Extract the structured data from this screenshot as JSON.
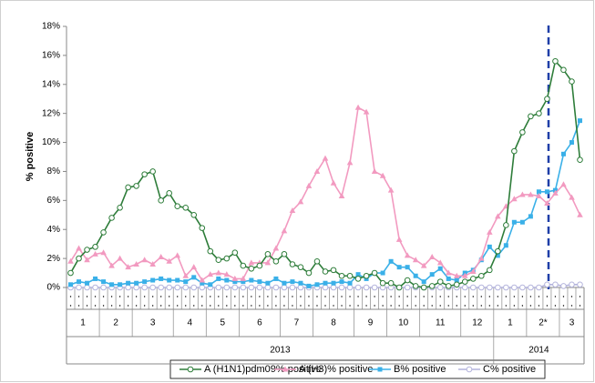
{
  "chart_data": {
    "type": "line",
    "y_label": "% positive",
    "ylim": [
      0,
      18
    ],
    "yticks": [
      {
        "value": 0,
        "label": "0%"
      },
      {
        "value": 2,
        "label": "2%"
      },
      {
        "value": 4,
        "label": "4%"
      },
      {
        "value": 6,
        "label": "6%"
      },
      {
        "value": 8,
        "label": "8%"
      },
      {
        "value": 10,
        "label": "10%"
      },
      {
        "value": 12,
        "label": "12%"
      },
      {
        "value": 14,
        "label": "14%"
      },
      {
        "value": 16,
        "label": "16%"
      },
      {
        "value": 18,
        "label": "18%"
      }
    ],
    "categories": [
      "1",
      "1",
      "1",
      "1",
      "2",
      "2",
      "2",
      "2",
      "3",
      "3",
      "3",
      "3",
      "3",
      "4",
      "4",
      "4",
      "4",
      "5",
      "5",
      "5",
      "5",
      "6",
      "6",
      "6",
      "6",
      "6",
      "7",
      "7",
      "7",
      "7",
      "8",
      "8",
      "8",
      "8",
      "8",
      "9",
      "9",
      "9",
      "9",
      "10",
      "10",
      "10",
      "10",
      "11",
      "11",
      "11",
      "11",
      "11",
      "12",
      "12",
      "12",
      "12",
      "1",
      "1",
      "1",
      "1",
      "2*",
      "2*",
      "2*",
      "2*",
      "3",
      "3",
      "3"
    ],
    "x_groups": [
      "2013",
      "2013",
      "2013",
      "2013",
      "2013",
      "2013",
      "2013",
      "2013",
      "2013",
      "2013",
      "2013",
      "2013",
      "2013",
      "2013",
      "2013",
      "2013",
      "2013",
      "2013",
      "2013",
      "2013",
      "2013",
      "2013",
      "2013",
      "2013",
      "2013",
      "2013",
      "2013",
      "2013",
      "2013",
      "2013",
      "2013",
      "2013",
      "2013",
      "2013",
      "2013",
      "2013",
      "2013",
      "2013",
      "2013",
      "2013",
      "2013",
      "2013",
      "2013",
      "2013",
      "2013",
      "2013",
      "2013",
      "2013",
      "2013",
      "2013",
      "2013",
      "2013",
      "2014",
      "2014",
      "2014",
      "2014",
      "2014",
      "2014",
      "2014",
      "2014",
      "2014",
      "2014",
      "2014"
    ],
    "series": [
      {
        "name": "A (H1N1)pdm09% positive",
        "color": "#2e7d3a",
        "marker": "circle-open",
        "values": [
          1.0,
          2.0,
          2.6,
          2.8,
          3.8,
          4.8,
          5.5,
          6.9,
          7.0,
          7.8,
          8.0,
          6.0,
          6.5,
          5.6,
          5.5,
          5.0,
          4.1,
          2.5,
          1.9,
          2.0,
          2.4,
          1.5,
          1.3,
          1.5,
          2.3,
          1.8,
          2.3,
          1.6,
          1.4,
          1.0,
          1.8,
          1.1,
          1.2,
          0.8,
          0.8,
          0.6,
          0.8,
          1.0,
          0.3,
          0.3,
          0.0,
          0.5,
          0.1,
          0.0,
          0.1,
          0.4,
          0.1,
          0.2,
          0.4,
          0.6,
          0.8,
          1.2,
          2.5,
          4.3,
          9.4,
          10.7,
          11.8,
          12.0,
          13.0,
          15.6,
          15.0,
          14.2,
          8.8
        ]
      },
      {
        "name": "A (H3)% positive",
        "color": "#f29ac0",
        "marker": "triangle",
        "values": [
          1.8,
          2.7,
          1.9,
          2.3,
          2.4,
          1.5,
          2.0,
          1.4,
          1.6,
          1.9,
          1.6,
          2.1,
          1.8,
          2.2,
          0.8,
          1.4,
          0.5,
          0.9,
          1.0,
          0.9,
          0.6,
          0.6,
          1.7,
          1.7,
          1.7,
          2.7,
          3.9,
          5.3,
          5.9,
          7.0,
          8.0,
          8.9,
          7.2,
          6.3,
          8.6,
          12.4,
          12.1,
          8.0,
          7.7,
          6.7,
          3.3,
          2.2,
          1.9,
          1.5,
          2.1,
          1.7,
          1.0,
          0.8,
          0.8,
          1.1,
          2.0,
          3.8,
          4.9,
          5.6,
          6.1,
          6.4,
          6.4,
          6.3,
          5.8,
          6.5,
          7.1,
          6.2,
          5.0
        ]
      },
      {
        "name": "B% positive",
        "color": "#3ab0e8",
        "marker": "square",
        "values": [
          0.2,
          0.4,
          0.3,
          0.6,
          0.4,
          0.2,
          0.2,
          0.3,
          0.3,
          0.4,
          0.5,
          0.6,
          0.5,
          0.5,
          0.4,
          0.7,
          0.3,
          0.2,
          0.6,
          0.5,
          0.4,
          0.4,
          0.5,
          0.4,
          0.3,
          0.6,
          0.3,
          0.4,
          0.3,
          0.1,
          0.2,
          0.3,
          0.3,
          0.4,
          0.3,
          0.9,
          0.6,
          1.0,
          1.0,
          1.8,
          1.4,
          1.4,
          0.8,
          0.4,
          0.9,
          1.3,
          0.6,
          0.5,
          1.0,
          1.2,
          1.9,
          2.8,
          2.2,
          2.9,
          4.5,
          4.5,
          4.9,
          6.6,
          6.6,
          6.7,
          9.2,
          10.0,
          11.5
        ]
      },
      {
        "name": "C% positive",
        "color": "#b4b4dc",
        "marker": "circle-open",
        "values": [
          0,
          0,
          0,
          0,
          0,
          0,
          0,
          0,
          0,
          0,
          0,
          0,
          0,
          0,
          0,
          0,
          0,
          0,
          0,
          0,
          0,
          0,
          0,
          0,
          0,
          0,
          0,
          0,
          0,
          0,
          0,
          0,
          0,
          0,
          0,
          0,
          0,
          0,
          0,
          0,
          0,
          0,
          0,
          0,
          0,
          0,
          0,
          0,
          0,
          0,
          0,
          0,
          0,
          0,
          0,
          0,
          0,
          0,
          0.2,
          0.2,
          0.1,
          0.2,
          0.2
        ]
      }
    ]
  }
}
